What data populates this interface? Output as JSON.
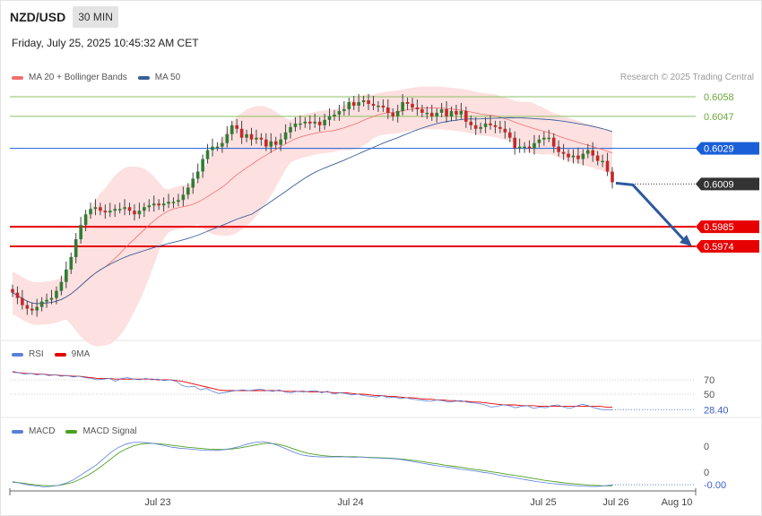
{
  "header": {
    "symbol": "NZD/USD",
    "timeframe": "30 MIN",
    "datetime": "Friday, July 25, 2025 10:45:32 AM CET"
  },
  "credit": "Research © 2025 Trading Central",
  "legends": {
    "price": [
      {
        "name": "MA 20 + Bollinger Bands",
        "color": "#f07070"
      },
      {
        "name": "MA 50",
        "color": "#3a5f9a"
      }
    ],
    "rsi": [
      {
        "name": "RSI",
        "color": "#5b7fd6"
      },
      {
        "name": "9MA",
        "color": "#e60000"
      }
    ],
    "macd": [
      {
        "name": "MACD",
        "color": "#5b7fd6"
      },
      {
        "name": "MACD Signal",
        "color": "#4aa020"
      }
    ]
  },
  "chart_data": [
    {
      "type": "candlestick",
      "panel": "price",
      "x_ticks": [
        "Jul 23",
        "Jul 24",
        "Jul 25",
        "Jul 26",
        "Aug 10"
      ],
      "levels": [
        {
          "value": 0.6058,
          "label": "0.6058",
          "kind": "resistance",
          "color": "#8cc060"
        },
        {
          "value": 0.6047,
          "label": "0.6047",
          "kind": "resistance",
          "color": "#8cc060"
        },
        {
          "value": 0.6029,
          "label": "0.6029",
          "kind": "pivot",
          "color": "#1a5fd8"
        },
        {
          "value": 0.6009,
          "label": "0.6009",
          "kind": "last_price",
          "color": "#333333"
        },
        {
          "value": 0.5985,
          "label": "0.5985",
          "kind": "target",
          "color": "#e60000"
        },
        {
          "value": 0.5974,
          "label": "0.5974",
          "kind": "target",
          "color": "#e60000"
        }
      ],
      "closes": [
        0.5948,
        0.5945,
        0.5941,
        0.5939,
        0.5938,
        0.594,
        0.5943,
        0.5944,
        0.5945,
        0.5949,
        0.5954,
        0.5961,
        0.5968,
        0.5978,
        0.5986,
        0.5992,
        0.5995,
        0.5996,
        0.5994,
        0.5993,
        0.5994,
        0.5995,
        0.5995,
        0.5996,
        0.5994,
        0.5992,
        0.5994,
        0.5996,
        0.5997,
        0.5998,
        0.5997,
        0.5998,
        0.5999,
        0.5999,
        0.6,
        0.6003,
        0.6007,
        0.6012,
        0.6016,
        0.6023,
        0.6028,
        0.603,
        0.603,
        0.6032,
        0.6037,
        0.6042,
        0.604,
        0.6035,
        0.6037,
        0.6034,
        0.6035,
        0.6034,
        0.603,
        0.6033,
        0.6031,
        0.6034,
        0.6038,
        0.6041,
        0.6043,
        0.6043,
        0.6044,
        0.6043,
        0.6044,
        0.6042,
        0.6045,
        0.6047,
        0.6048,
        0.605,
        0.6051,
        0.6055,
        0.6053,
        0.6055,
        0.6056,
        0.6054,
        0.6053,
        0.6053,
        0.6052,
        0.6049,
        0.6047,
        0.605,
        0.6055,
        0.6054,
        0.6052,
        0.6051,
        0.6049,
        0.6049,
        0.6047,
        0.6049,
        0.6051,
        0.6047,
        0.605,
        0.6048,
        0.605,
        0.6044,
        0.6042,
        0.604,
        0.6041,
        0.6043,
        0.6042,
        0.6041,
        0.604,
        0.6038,
        0.6035,
        0.6029,
        0.603,
        0.603,
        0.6029,
        0.6032,
        0.6034,
        0.6035,
        0.6035,
        0.603,
        0.6027,
        0.6026,
        0.6024,
        0.6025,
        0.6023,
        0.6026,
        0.6028,
        0.6025,
        0.6022,
        0.6022,
        0.6016,
        0.601
      ]
    },
    {
      "type": "line",
      "panel": "rsi",
      "y_ticks": [
        "70",
        "50"
      ],
      "last_value": "28.40",
      "series": [
        {
          "name": "RSI",
          "values": [
            82,
            80,
            78,
            79,
            77,
            78,
            76,
            77,
            75,
            76,
            74,
            75,
            73,
            72,
            70,
            71,
            72,
            68,
            72,
            73,
            71,
            70,
            72,
            70,
            71,
            69,
            70,
            68,
            62,
            60,
            61,
            56,
            58,
            54,
            51,
            52,
            54,
            55,
            56,
            55,
            56,
            57,
            55,
            54,
            56,
            53,
            52,
            54,
            53,
            54,
            55,
            52,
            54,
            50,
            52,
            51,
            49,
            50,
            48,
            47,
            46,
            48,
            45,
            46,
            44,
            45,
            43,
            42,
            41,
            40,
            42,
            41,
            39,
            40,
            41,
            39,
            38,
            37,
            35,
            32,
            33,
            35,
            34,
            31,
            33,
            34,
            30,
            32,
            31,
            34,
            35,
            32,
            30,
            33,
            36,
            34,
            31,
            29,
            28,
            28.4
          ]
        },
        {
          "name": "9MA",
          "values": [
            81,
            80,
            79,
            79,
            78,
            78,
            77,
            77,
            76,
            76,
            75,
            75,
            74,
            73,
            72,
            72,
            72,
            71,
            71,
            71,
            71,
            71,
            71,
            71,
            70,
            70,
            70,
            69,
            68,
            66,
            64,
            62,
            60,
            58,
            56,
            55,
            55,
            55,
            55,
            55,
            55,
            55,
            55,
            55,
            55,
            54,
            54,
            54,
            54,
            53,
            53,
            53,
            53,
            52,
            52,
            52,
            51,
            50,
            50,
            49,
            48,
            48,
            47,
            47,
            46,
            45,
            45,
            44,
            43,
            43,
            42,
            42,
            41,
            41,
            40,
            40,
            39,
            39,
            38,
            37,
            36,
            35,
            35,
            35,
            34,
            34,
            34,
            33,
            33,
            33,
            33,
            33,
            33,
            33,
            33,
            33,
            33,
            33,
            32,
            32
          ]
        }
      ]
    },
    {
      "type": "line",
      "panel": "macd",
      "y_ticks": [
        "0",
        "0"
      ],
      "last_value": "-0.00",
      "series": [
        {
          "name": "MACD",
          "values": [
            0.1,
            0.05,
            0.0,
            -0.03,
            -0.06,
            -0.05,
            -0.02,
            0.05,
            0.15,
            0.3,
            0.45,
            0.6,
            0.8,
            1.0,
            1.15,
            1.25,
            1.3,
            1.3,
            1.28,
            1.25,
            1.2,
            1.15,
            1.12,
            1.1,
            1.08,
            1.06,
            1.05,
            1.05,
            1.08,
            1.12,
            1.18,
            1.25,
            1.3,
            1.32,
            1.28,
            1.2,
            1.1,
            1.0,
            0.92,
            0.88,
            0.86,
            0.85,
            0.85,
            0.86,
            0.85,
            0.84,
            0.85,
            0.83,
            0.82,
            0.81,
            0.8,
            0.78,
            0.74,
            0.7,
            0.66,
            0.62,
            0.58,
            0.55,
            0.52,
            0.48,
            0.45,
            0.42,
            0.38,
            0.35,
            0.3,
            0.26,
            0.22,
            0.18,
            0.14,
            0.1,
            0.07,
            0.04,
            0.02,
            0.0,
            -0.02,
            -0.04,
            -0.05,
            -0.05,
            -0.03,
            0.0
          ]
        },
        {
          "name": "MACD Signal",
          "values": [
            0.08,
            0.06,
            0.03,
            0.0,
            -0.02,
            -0.03,
            -0.02,
            0.02,
            0.08,
            0.18,
            0.3,
            0.45,
            0.62,
            0.8,
            0.98,
            1.1,
            1.2,
            1.25,
            1.27,
            1.26,
            1.24,
            1.21,
            1.18,
            1.15,
            1.13,
            1.11,
            1.09,
            1.08,
            1.08,
            1.1,
            1.13,
            1.17,
            1.22,
            1.26,
            1.27,
            1.24,
            1.18,
            1.1,
            1.02,
            0.96,
            0.92,
            0.89,
            0.87,
            0.87,
            0.86,
            0.86,
            0.85,
            0.84,
            0.83,
            0.82,
            0.81,
            0.79,
            0.77,
            0.74,
            0.71,
            0.67,
            0.64,
            0.6,
            0.57,
            0.54,
            0.5,
            0.47,
            0.44,
            0.4,
            0.37,
            0.33,
            0.29,
            0.26,
            0.22,
            0.18,
            0.14,
            0.11,
            0.08,
            0.05,
            0.03,
            0.01,
            -0.01,
            -0.02,
            -0.03,
            -0.03
          ]
        }
      ]
    }
  ]
}
